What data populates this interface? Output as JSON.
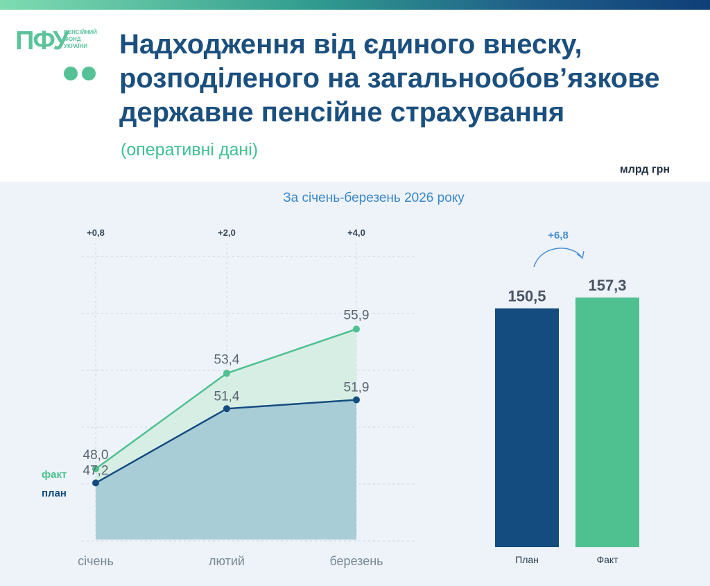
{
  "header": {
    "logo_mark": "ПФУ",
    "logo_text_lines": [
      "ПЕНСІЙНИЙ",
      "ФОНД",
      "УКРАЇНИ"
    ],
    "title_lines": [
      "Надходження від єдиного внеску,",
      "розподіленого на загальнообов’язкове",
      "державне пенсійне страхування"
    ],
    "subtitle": "(оперативні дані)",
    "unit": "млрд грн"
  },
  "period_label": "За січень-березень 2026 року",
  "colors": {
    "fact": "#4fc08f",
    "plan": "#154c80",
    "title": "#1b4f7e",
    "accent": "#3c86c6"
  },
  "chart_data": [
    {
      "type": "line",
      "categories": [
        "січень",
        "лютий",
        "березень"
      ],
      "series": [
        {
          "name": "факт",
          "values": [
            48.0,
            53.4,
            55.9
          ],
          "labels": [
            "48,0",
            "53,4",
            "55,9"
          ],
          "color": "#4fc08f"
        },
        {
          "name": "план",
          "values": [
            47.2,
            51.4,
            51.9
          ],
          "labels": [
            "47,2",
            "51,4",
            "51,9"
          ],
          "color": "#154c80"
        }
      ],
      "differences": [
        "+0,8",
        "+2,0",
        "+4,0"
      ],
      "ylim": [
        44,
        60
      ],
      "grid": true,
      "legend": "left"
    },
    {
      "type": "bar",
      "categories": [
        "План",
        "Факт"
      ],
      "values": [
        150.5,
        157.3
      ],
      "labels": [
        "150,5",
        "157,3"
      ],
      "colors": [
        "#154c80",
        "#4fc08f"
      ],
      "difference": "+6,8",
      "ylim": [
        0,
        170
      ]
    }
  ]
}
